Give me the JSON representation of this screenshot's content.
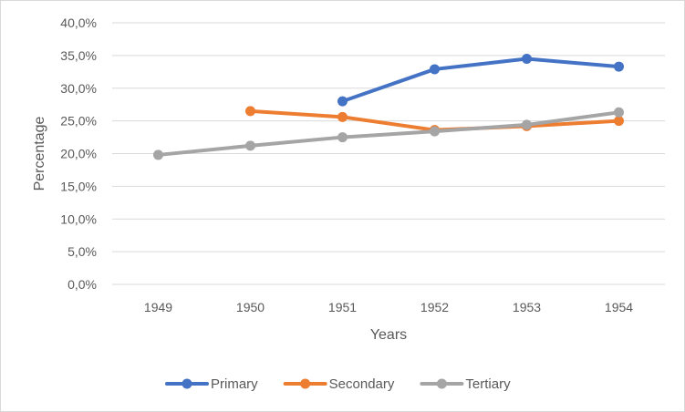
{
  "chart_data": {
    "type": "line",
    "title": "",
    "xlabel": "Years",
    "ylabel": "Percentage",
    "categories": [
      "1949",
      "1950",
      "1951",
      "1952",
      "1953",
      "1954"
    ],
    "y_ticks": [
      "0,0%",
      "5,0%",
      "10,0%",
      "15,0%",
      "20,0%",
      "25,0%",
      "30,0%",
      "35,0%",
      "40,0%"
    ],
    "ylim": [
      0,
      40
    ],
    "grid": true,
    "legend_position": "bottom",
    "series": [
      {
        "name": "Primary",
        "color": "#4472C4",
        "values": [
          null,
          null,
          28.0,
          32.9,
          34.5,
          33.3
        ]
      },
      {
        "name": "Secondary",
        "color": "#ED7D31",
        "values": [
          null,
          26.5,
          25.6,
          23.6,
          24.2,
          25.0
        ]
      },
      {
        "name": "Tertiary",
        "color": "#A5A5A5",
        "values": [
          19.8,
          21.2,
          22.5,
          23.4,
          24.4,
          26.3
        ]
      }
    ]
  }
}
